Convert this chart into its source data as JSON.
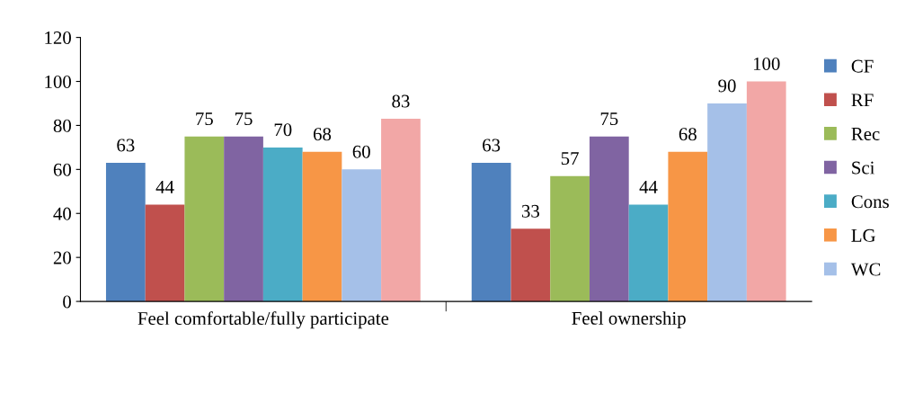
{
  "chart_data": {
    "type": "bar",
    "categories": [
      "Feel comfortable/fully participate",
      "Feel ownership"
    ],
    "series": [
      {
        "name": "CF",
        "color": "#4f81bd",
        "values": [
          63,
          63
        ]
      },
      {
        "name": "RF",
        "color": "#c0504d",
        "values": [
          44,
          33
        ]
      },
      {
        "name": "Rec",
        "color": "#9bbb59",
        "values": [
          75,
          57
        ]
      },
      {
        "name": "Sci",
        "color": "#8064a2",
        "values": [
          75,
          75
        ]
      },
      {
        "name": "Cons",
        "color": "#4bacc6",
        "values": [
          70,
          44
        ]
      },
      {
        "name": "LG",
        "color": "#f79646",
        "values": [
          68,
          68
        ]
      },
      {
        "name": "WC",
        "color": "#a5c0e8",
        "values": [
          60,
          90
        ]
      },
      {
        "color": "#f2a7a6",
        "values": [
          83,
          100
        ]
      }
    ],
    "ylim": [
      0,
      120
    ],
    "yticks": [
      0,
      20,
      40,
      60,
      80,
      100,
      120
    ],
    "data_labels": true,
    "grid": false,
    "legend": "right"
  }
}
